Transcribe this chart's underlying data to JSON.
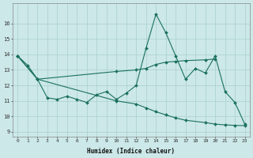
{
  "xlabel": "Humidex (Indice chaleur)",
  "bg_color": "#cce8e8",
  "grid_color": "#aacfcf",
  "line_color": "#1a7060",
  "xlim": [
    -0.5,
    23.5
  ],
  "ylim": [
    8.7,
    17.3
  ],
  "yticks": [
    9,
    10,
    11,
    12,
    13,
    14,
    15,
    16
  ],
  "xtick_labels": [
    "0",
    "1",
    "2",
    "3",
    "4",
    "5",
    "6",
    "7",
    "8",
    "9",
    "10",
    "11",
    "12",
    "13",
    "14",
    "15",
    "16",
    "17",
    "18",
    "19",
    "20",
    "21",
    "22",
    "23"
  ],
  "line1_x": [
    0,
    1,
    2,
    3,
    4,
    5,
    6,
    7,
    8,
    9,
    10,
    11,
    12,
    13,
    14,
    15,
    16,
    17,
    18,
    19,
    20,
    21,
    22,
    23
  ],
  "line1_y": [
    13.9,
    13.3,
    12.4,
    11.2,
    11.1,
    11.3,
    11.1,
    10.9,
    11.4,
    11.6,
    11.1,
    11.5,
    12.0,
    14.4,
    16.6,
    15.4,
    13.9,
    12.4,
    13.1,
    12.8,
    13.9,
    11.6,
    10.9,
    9.5
  ],
  "line2_x": [
    0,
    2,
    10,
    12,
    13,
    14,
    15,
    16,
    17,
    19,
    20
  ],
  "line2_y": [
    13.9,
    12.4,
    12.9,
    13.0,
    13.1,
    13.35,
    13.5,
    13.55,
    13.6,
    13.65,
    13.7
  ],
  "line3_x": [
    0,
    2,
    10,
    12,
    13,
    14,
    15,
    16,
    17,
    19,
    20,
    21,
    22,
    23
  ],
  "line3_y": [
    13.9,
    12.4,
    11.0,
    10.8,
    10.55,
    10.3,
    10.1,
    9.9,
    9.75,
    9.6,
    9.5,
    9.45,
    9.42,
    9.4
  ]
}
